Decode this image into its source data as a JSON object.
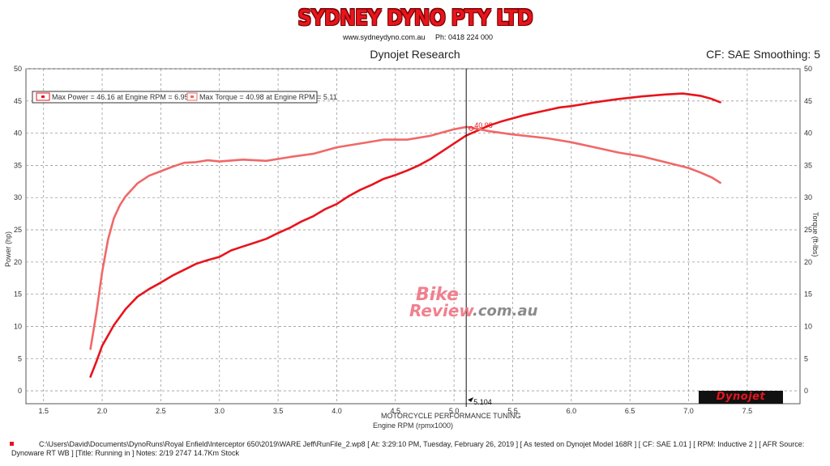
{
  "header": {
    "brand": "SYDNEY DYNO PTY LTD",
    "website": "www.sydneydyno.com.au",
    "phone": "Ph: 0418 224 000",
    "research": "Dynojet Research",
    "cf_smoothing": "CF: SAE Smoothing: 5"
  },
  "watermark": {
    "bike": "Bike",
    "review": "Review",
    "domain": ".com.au"
  },
  "logo_text": "Dynojet",
  "footer": {
    "line1": "C:\\Users\\David\\Documents\\DynoRuns\\Royal Enfield\\Interceptor 650\\2019\\WARE Jeff\\RunFile_2.wp8 [ At: 3:29:10 PM, Tuesday, February 26, 2019 ] [ As tested on Dynojet Model 168R ] [ CF: SAE 1.01 ] [ RPM: Inductive 2 ] [ AFR Source:",
    "line2": "Dynoware RT WB ] [Title: Running in ]  Notes: 2/19 2747 14.7Km Stock"
  },
  "colors": {
    "power": "#e8141c",
    "torque": "#f06868",
    "grid": "#9a9a9a",
    "cursor": "#111111"
  },
  "chart_data": {
    "type": "line",
    "xlabel": "Engine RPM (rpmx1000)",
    "ylabel": "Power (hp)",
    "y2label": "Torque (ft-lbs)",
    "xlim": [
      1.35,
      7.95
    ],
    "ylim": [
      -2,
      50
    ],
    "y2lim": [
      -2,
      50
    ],
    "xticks": [
      1.5,
      2.0,
      2.5,
      3.0,
      3.5,
      4.0,
      4.5,
      5.0,
      5.5,
      6.0,
      6.5,
      7.0,
      7.5
    ],
    "yticks": [
      0,
      5,
      10,
      15,
      20,
      25,
      30,
      35,
      40,
      45,
      50
    ],
    "grid": true,
    "legend_position": "top-left",
    "legend": [
      "Max Power = 46.16 at Engine RPM = 6.95",
      "Max Torque = 40.98 at Engine RPM = 5.11"
    ],
    "cursor": {
      "x": 5.104,
      "label": "5.104",
      "readout": "40.98",
      "section_label": "MOTORCYCLE PERFORMANCE TUNING"
    },
    "series": [
      {
        "name": "Power",
        "axis": "left",
        "x": [
          1.9,
          1.95,
          2.0,
          2.1,
          2.2,
          2.3,
          2.4,
          2.5,
          2.6,
          2.7,
          2.8,
          2.9,
          3.0,
          3.1,
          3.2,
          3.3,
          3.4,
          3.5,
          3.6,
          3.7,
          3.8,
          3.9,
          4.0,
          4.1,
          4.2,
          4.3,
          4.4,
          4.5,
          4.6,
          4.7,
          4.8,
          4.9,
          5.0,
          5.1,
          5.2,
          5.3,
          5.4,
          5.5,
          5.6,
          5.7,
          5.8,
          5.9,
          6.0,
          6.2,
          6.4,
          6.6,
          6.8,
          6.95,
          7.1,
          7.2,
          7.27
        ],
        "values": [
          2.2,
          4.5,
          7.0,
          10.2,
          12.7,
          14.6,
          15.8,
          16.8,
          17.9,
          18.8,
          19.7,
          20.3,
          20.8,
          21.8,
          22.4,
          23.0,
          23.6,
          24.5,
          25.3,
          26.3,
          27.1,
          28.2,
          29.0,
          30.2,
          31.2,
          32.0,
          32.9,
          33.5,
          34.2,
          35.0,
          36.0,
          37.2,
          38.4,
          39.6,
          40.4,
          41.2,
          41.8,
          42.3,
          42.8,
          43.2,
          43.6,
          44.0,
          44.2,
          44.8,
          45.3,
          45.7,
          46.0,
          46.16,
          45.8,
          45.3,
          44.8
        ]
      },
      {
        "name": "Torque",
        "axis": "right",
        "x": [
          1.9,
          1.95,
          2.0,
          2.05,
          2.1,
          2.15,
          2.2,
          2.3,
          2.4,
          2.5,
          2.6,
          2.7,
          2.8,
          2.9,
          3.0,
          3.2,
          3.4,
          3.6,
          3.8,
          4.0,
          4.2,
          4.4,
          4.6,
          4.8,
          5.0,
          5.11,
          5.3,
          5.5,
          5.8,
          6.0,
          6.2,
          6.4,
          6.6,
          6.8,
          7.0,
          7.1,
          7.2,
          7.27
        ],
        "values": [
          6.5,
          12.0,
          18.5,
          23.5,
          26.8,
          28.8,
          30.2,
          32.2,
          33.4,
          34.1,
          34.8,
          35.4,
          35.5,
          35.8,
          35.6,
          35.9,
          35.7,
          36.3,
          36.8,
          37.8,
          38.4,
          39.0,
          39.0,
          39.6,
          40.6,
          40.98,
          40.3,
          39.8,
          39.2,
          38.6,
          37.8,
          37.0,
          36.4,
          35.5,
          34.6,
          33.9,
          33.1,
          32.3
        ]
      }
    ]
  }
}
